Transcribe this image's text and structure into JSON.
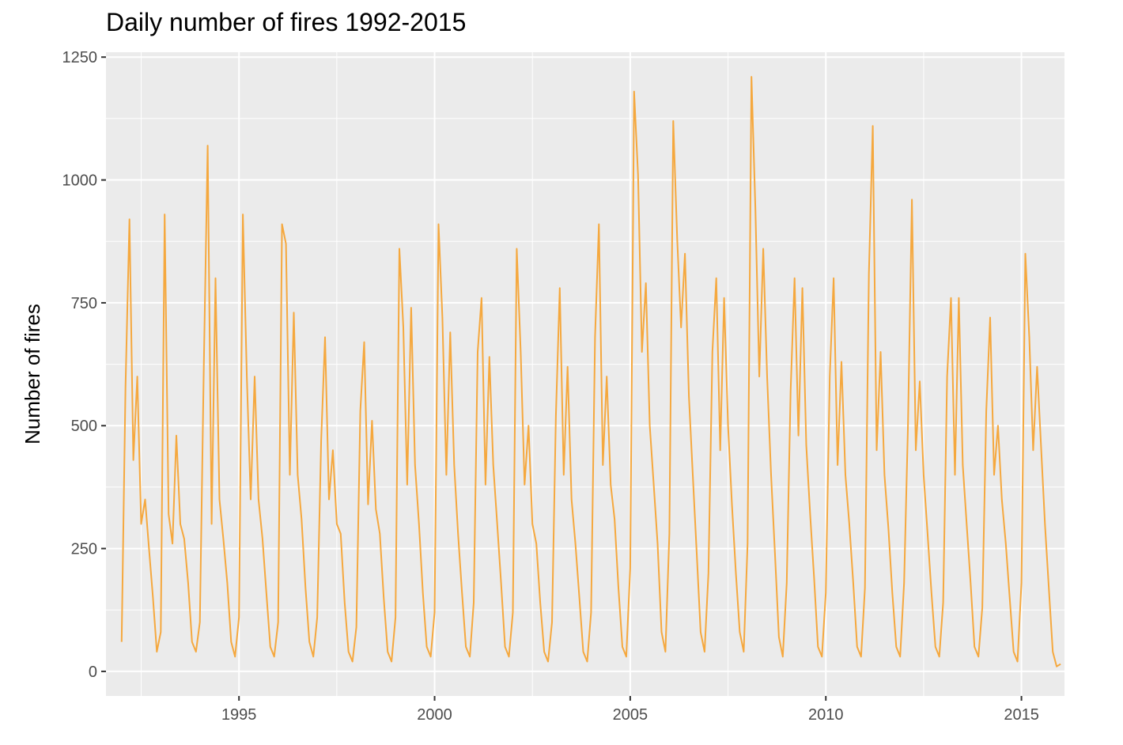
{
  "chart_data": {
    "type": "line",
    "title": "Daily number of fires 1992-2015",
    "xlabel": "",
    "ylabel": "Number of fires",
    "xlim": [
      1991.6,
      2016.1
    ],
    "ylim": [
      -50,
      1260
    ],
    "x_ticks": [
      1995,
      2000,
      2005,
      2010,
      2015
    ],
    "x_tick_labels": [
      "1995",
      "2000",
      "2005",
      "2010",
      "2015"
    ],
    "y_ticks": [
      0,
      250,
      500,
      750,
      1000,
      1250
    ],
    "y_tick_labels": [
      "0",
      "250",
      "500",
      "750",
      "1000",
      "1250"
    ],
    "grid": true,
    "legend": "none",
    "panel_color": "#ebebeb",
    "grid_color": "#ffffff",
    "series_color": "#f5a83e",
    "series": [
      {
        "x": [
          1992.0,
          1992.1,
          1992.2,
          1992.3,
          1992.4,
          1992.5,
          1992.6,
          1992.7,
          1992.8,
          1992.9,
          1993.0,
          1993.1,
          1993.2,
          1993.3,
          1993.4,
          1993.5,
          1993.6,
          1993.7,
          1993.8,
          1993.9,
          1994.0,
          1994.1,
          1994.2,
          1994.3,
          1994.4,
          1994.5,
          1994.6,
          1994.7,
          1994.8,
          1994.9,
          1995.0,
          1995.1,
          1995.2,
          1995.3,
          1995.4,
          1995.5,
          1995.6,
          1995.7,
          1995.8,
          1995.9,
          1996.0,
          1996.1,
          1996.2,
          1996.3,
          1996.4,
          1996.5,
          1996.6,
          1996.7,
          1996.8,
          1996.9,
          1997.0,
          1997.1,
          1997.2,
          1997.3,
          1997.4,
          1997.5,
          1997.6,
          1997.7,
          1997.8,
          1997.9,
          1998.0,
          1998.1,
          1998.2,
          1998.3,
          1998.4,
          1998.5,
          1998.6,
          1998.7,
          1998.8,
          1998.9,
          1999.0,
          1999.1,
          1999.2,
          1999.3,
          1999.4,
          1999.5,
          1999.6,
          1999.7,
          1999.8,
          1999.9,
          2000.0,
          2000.1,
          2000.2,
          2000.3,
          2000.4,
          2000.5,
          2000.6,
          2000.7,
          2000.8,
          2000.9,
          2001.0,
          2001.1,
          2001.2,
          2001.3,
          2001.4,
          2001.5,
          2001.6,
          2001.7,
          2001.8,
          2001.9,
          2002.0,
          2002.1,
          2002.2,
          2002.3,
          2002.4,
          2002.5,
          2002.6,
          2002.7,
          2002.8,
          2002.9,
          2003.0,
          2003.1,
          2003.2,
          2003.3,
          2003.4,
          2003.5,
          2003.6,
          2003.7,
          2003.8,
          2003.9,
          2004.0,
          2004.1,
          2004.2,
          2004.3,
          2004.4,
          2004.5,
          2004.6,
          2004.7,
          2004.8,
          2004.9,
          2005.0,
          2005.1,
          2005.2,
          2005.3,
          2005.4,
          2005.5,
          2005.6,
          2005.7,
          2005.8,
          2005.9,
          2006.0,
          2006.1,
          2006.2,
          2006.3,
          2006.4,
          2006.5,
          2006.6,
          2006.7,
          2006.8,
          2006.9,
          2007.0,
          2007.1,
          2007.2,
          2007.3,
          2007.4,
          2007.5,
          2007.6,
          2007.7,
          2007.8,
          2007.9,
          2008.0,
          2008.1,
          2008.2,
          2008.3,
          2008.4,
          2008.5,
          2008.6,
          2008.7,
          2008.8,
          2008.9,
          2009.0,
          2009.1,
          2009.2,
          2009.3,
          2009.4,
          2009.5,
          2009.6,
          2009.7,
          2009.8,
          2009.9,
          2010.0,
          2010.1,
          2010.2,
          2010.3,
          2010.4,
          2010.5,
          2010.6,
          2010.7,
          2010.8,
          2010.9,
          2011.0,
          2011.1,
          2011.2,
          2011.3,
          2011.4,
          2011.5,
          2011.6,
          2011.7,
          2011.8,
          2011.9,
          2012.0,
          2012.1,
          2012.2,
          2012.3,
          2012.4,
          2012.5,
          2012.6,
          2012.7,
          2012.8,
          2012.9,
          2013.0,
          2013.1,
          2013.2,
          2013.3,
          2013.4,
          2013.5,
          2013.6,
          2013.7,
          2013.8,
          2013.9,
          2014.0,
          2014.1,
          2014.2,
          2014.3,
          2014.4,
          2014.5,
          2014.6,
          2014.7,
          2014.8,
          2014.9,
          2015.0,
          2015.1,
          2015.2,
          2015.3,
          2015.4,
          2015.5,
          2015.6,
          2015.7,
          2015.8,
          2015.9,
          2016.0
        ],
        "y": [
          60,
          580,
          920,
          430,
          600,
          300,
          350,
          250,
          150,
          40,
          80,
          930,
          320,
          260,
          480,
          300,
          270,
          180,
          60,
          40,
          100,
          620,
          1070,
          300,
          800,
          350,
          270,
          180,
          60,
          30,
          110,
          930,
          600,
          350,
          600,
          350,
          270,
          160,
          50,
          30,
          100,
          910,
          870,
          400,
          730,
          400,
          310,
          170,
          60,
          30,
          110,
          470,
          680,
          350,
          450,
          300,
          280,
          140,
          40,
          20,
          90,
          530,
          670,
          340,
          510,
          330,
          280,
          150,
          40,
          20,
          110,
          860,
          700,
          380,
          740,
          420,
          300,
          160,
          50,
          30,
          120,
          910,
          720,
          400,
          690,
          420,
          280,
          160,
          50,
          30,
          140,
          650,
          760,
          380,
          640,
          420,
          300,
          180,
          50,
          30,
          120,
          860,
          650,
          380,
          500,
          300,
          260,
          140,
          40,
          20,
          100,
          520,
          780,
          400,
          620,
          350,
          260,
          150,
          40,
          20,
          120,
          680,
          910,
          420,
          600,
          380,
          310,
          170,
          50,
          30,
          210,
          1180,
          1010,
          650,
          790,
          500,
          380,
          260,
          80,
          40,
          280,
          1120,
          880,
          700,
          850,
          560,
          400,
          240,
          80,
          40,
          200,
          650,
          800,
          450,
          760,
          500,
          340,
          200,
          80,
          40,
          260,
          1210,
          940,
          600,
          860,
          600,
          400,
          240,
          70,
          30,
          180,
          570,
          800,
          480,
          780,
          460,
          320,
          190,
          50,
          30,
          160,
          600,
          800,
          420,
          630,
          400,
          300,
          180,
          50,
          30,
          170,
          810,
          1110,
          450,
          650,
          400,
          290,
          160,
          50,
          30,
          180,
          500,
          960,
          450,
          590,
          400,
          280,
          160,
          50,
          30,
          140,
          600,
          760,
          400,
          760,
          420,
          300,
          180,
          50,
          30,
          130,
          530,
          720,
          400,
          500,
          350,
          260,
          150,
          40,
          20,
          180,
          850,
          680,
          450,
          620,
          460,
          300,
          170,
          40,
          10,
          15
        ]
      }
    ]
  }
}
